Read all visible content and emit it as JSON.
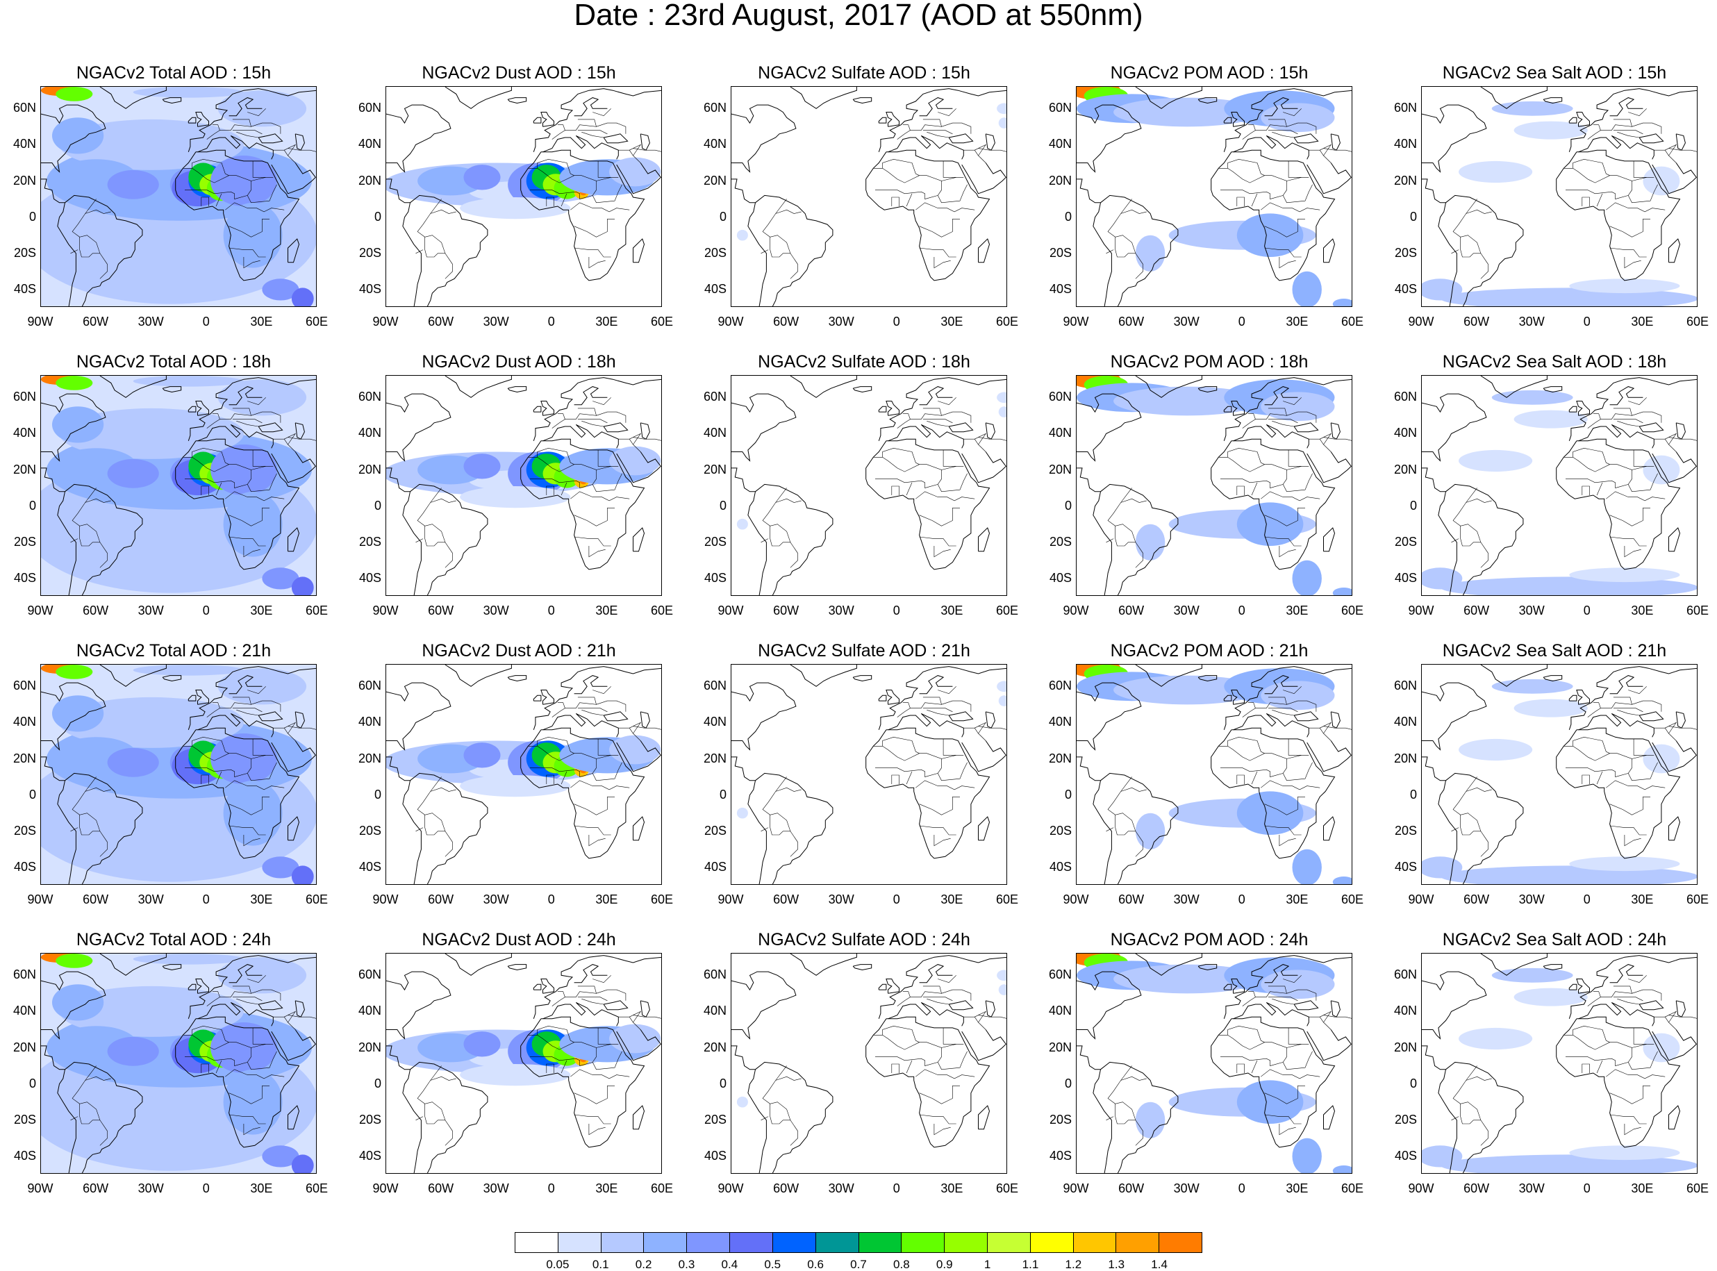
{
  "title": "Date : 23rd August, 2017 (AOD at 550nm)",
  "rows": [
    "15h",
    "18h",
    "21h",
    "24h"
  ],
  "panels": [
    {
      "title": "NGACv2 Total AOD : 15h",
      "field": "total"
    },
    {
      "title": "NGACv2 Dust AOD : 15h",
      "field": "dust"
    },
    {
      "title": "NGACv2 Sulfate AOD : 15h",
      "field": "sulfate"
    },
    {
      "title": "NGACv2 POM AOD : 15h",
      "field": "pom"
    },
    {
      "title": "NGACv2 Sea Salt AOD : 15h",
      "field": "seasalt"
    },
    {
      "title": "NGACv2 Total AOD : 18h",
      "field": "total"
    },
    {
      "title": "NGACv2 Dust AOD : 18h",
      "field": "dust"
    },
    {
      "title": "NGACv2 Sulfate AOD : 18h",
      "field": "sulfate"
    },
    {
      "title": "NGACv2 POM AOD : 18h",
      "field": "pom"
    },
    {
      "title": "NGACv2 Sea Salt AOD : 18h",
      "field": "seasalt"
    },
    {
      "title": "NGACv2 Total AOD : 21h",
      "field": "total"
    },
    {
      "title": "NGACv2 Dust AOD : 21h",
      "field": "dust"
    },
    {
      "title": "NGACv2 Sulfate AOD : 21h",
      "field": "sulfate"
    },
    {
      "title": "NGACv2 POM AOD : 21h",
      "field": "pom"
    },
    {
      "title": "NGACv2 Sea Salt AOD : 21h",
      "field": "seasalt"
    },
    {
      "title": "NGACv2 Total AOD : 24h",
      "field": "total"
    },
    {
      "title": "NGACv2 Dust AOD : 24h",
      "field": "dust"
    },
    {
      "title": "NGACv2 Sulfate AOD : 24h",
      "field": "sulfate"
    },
    {
      "title": "NGACv2 POM AOD : 24h",
      "field": "pom"
    },
    {
      "title": "NGACv2 Sea Salt  AOD : 24h",
      "field": "seasalt"
    }
  ],
  "axes": {
    "lon_labels": [
      "90W",
      "60W",
      "30W",
      "0",
      "30E",
      "60E"
    ],
    "lat_labels": [
      "60N",
      "40N",
      "20N",
      "0",
      "20S",
      "40S"
    ]
  },
  "colorbar": {
    "labels": [
      "0.05",
      "0.1",
      "0.2",
      "0.3",
      "0.4",
      "0.5",
      "0.6",
      "0.7",
      "0.8",
      "0.9",
      "1",
      "1.1",
      "1.2",
      "1.3",
      "1.4"
    ],
    "colors": [
      "#ffffff",
      "#d6e2ff",
      "#b5c9ff",
      "#8eb2ff",
      "#7f96ff",
      "#6370f8",
      "#0063ff",
      "#009696",
      "#00c633",
      "#63ff00",
      "#96ff00",
      "#c6ff33",
      "#ffff00",
      "#ffc600",
      "#ffa000",
      "#ff7c00",
      "#ff1900"
    ]
  },
  "map_colors": {
    "coast": "#000000"
  }
}
